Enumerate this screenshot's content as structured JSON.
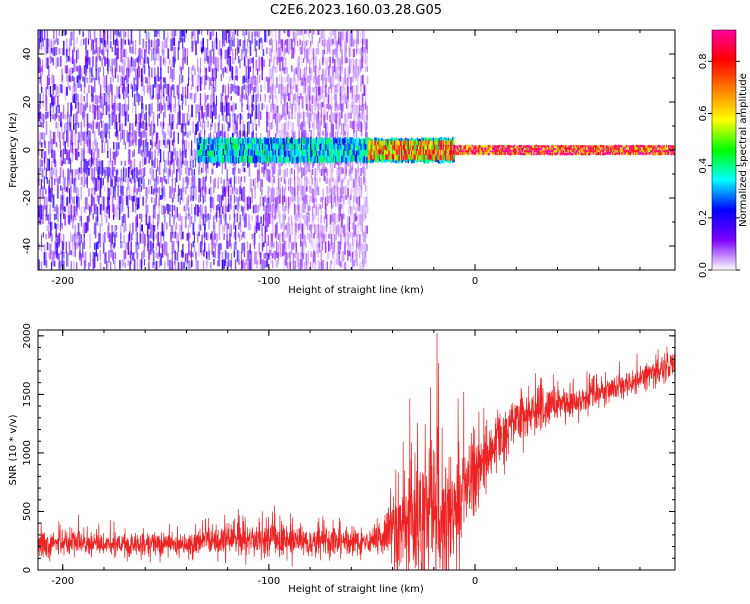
{
  "title": "C2E6.2023.160.03.28.G05",
  "chart_data": [
    {
      "type": "heatmap",
      "title": "",
      "xlabel": "Height of straight line (km)",
      "ylabel": "Frequency (Hz)",
      "xlim": [
        -212,
        97
      ],
      "ylim": [
        -50,
        50
      ],
      "xticks": [
        -200,
        -100,
        0
      ],
      "yticks": [
        -40,
        -20,
        0,
        20,
        40
      ],
      "colorbar": {
        "label": "Normalized spectral amplitude",
        "range": [
          0.0,
          0.92
        ],
        "ticks": [
          0.0,
          0.2,
          0.4,
          0.6,
          0.8
        ],
        "colormap": [
          "#ffffff",
          "#7b00ff",
          "#0000ff",
          "#00ffff",
          "#00ff00",
          "#ffff00",
          "#ff8000",
          "#ff0000",
          "#ff00a0"
        ]
      },
      "description_regions": [
        {
          "x_range": [
            -212,
            -100
          ],
          "freq_range": [
            -50,
            50
          ],
          "amplitude": 0.12
        },
        {
          "x_range": [
            -100,
            -52
          ],
          "freq_range": [
            -50,
            50
          ],
          "amplitude": 0.06
        },
        {
          "x_range": [
            -135,
            -10
          ],
          "freq_range": [
            -5,
            5
          ],
          "amplitude": 0.35
        },
        {
          "x_range": [
            -52,
            -10
          ],
          "freq_range": [
            -4,
            4
          ],
          "amplitude": 0.7
        },
        {
          "x_range": [
            -10,
            97
          ],
          "freq_range": [
            -2,
            2
          ],
          "amplitude": 0.85
        }
      ]
    },
    {
      "type": "line",
      "title": "",
      "xlabel": "Height of straight line (km)",
      "ylabel": "SNR (10 * v/v)",
      "xlim": [
        -212,
        97
      ],
      "ylim": [
        0,
        2050
      ],
      "xticks": [
        -200,
        -100,
        0
      ],
      "yticks": [
        0,
        500,
        1000,
        1500,
        2000
      ],
      "series": [
        {
          "color": "#ee2222",
          "x": [
            -212,
            -200,
            -180,
            -160,
            -140,
            -130,
            -120,
            -100,
            -80,
            -60,
            -52,
            -45,
            -40,
            -30,
            -25,
            -20,
            -15,
            -10,
            -5,
            0,
            10,
            20,
            30,
            40,
            50,
            60,
            70,
            80,
            90,
            97
          ],
          "y": [
            220,
            230,
            225,
            210,
            200,
            250,
            260,
            250,
            240,
            230,
            220,
            280,
            350,
            420,
            480,
            500,
            480,
            520,
            700,
            850,
            1050,
            1300,
            1350,
            1400,
            1450,
            1500,
            1550,
            1620,
            1700,
            1770
          ],
          "spread": [
            120,
            130,
            120,
            110,
            110,
            160,
            170,
            160,
            150,
            130,
            120,
            200,
            400,
            700,
            900,
            800,
            700,
            550,
            450,
            380,
            300,
            250,
            200,
            160,
            150,
            140,
            140,
            140,
            140,
            150
          ]
        }
      ]
    }
  ]
}
